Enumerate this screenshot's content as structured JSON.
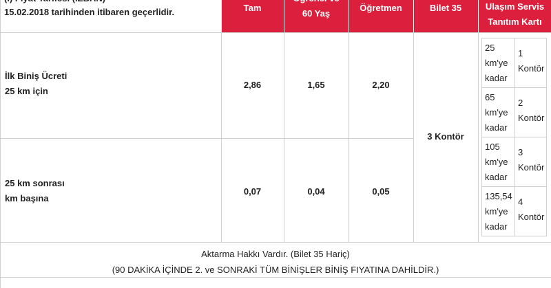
{
  "header": {
    "title_lines": [
      "(İ) Fiyat Tarifesi (İZBAN)",
      "15.02.2018 tarihinden itibaren geçerlidir."
    ],
    "columns": [
      [
        "Tam"
      ],
      [
        "Öğrenci ve",
        "60 Yaş"
      ],
      [
        "Öğretmen"
      ],
      [
        "Bilet 35"
      ],
      [
        "Ulaşım Servis",
        "Tanıtım Kartı"
      ]
    ]
  },
  "rows": [
    {
      "label": [
        "İlk Biniş Ücreti",
        "25 km için"
      ],
      "values": [
        "2,86",
        "1,65",
        "2,20"
      ]
    },
    {
      "label": [
        "25 km sonrası",
        "km başına"
      ],
      "values": [
        "0,07",
        "0,04",
        "0,05"
      ]
    }
  ],
  "bilet35": "3 Kontör",
  "ulasim": [
    {
      "distance": [
        "25",
        "km'ye",
        "kadar"
      ],
      "kontor": [
        "1",
        "Kontör"
      ]
    },
    {
      "distance": [
        "65",
        "km'ye",
        "kadar"
      ],
      "kontor": [
        "2",
        "Kontör"
      ]
    },
    {
      "distance": [
        "105",
        "km'ye",
        "kadar"
      ],
      "kontor": [
        "3",
        "Kontör"
      ]
    },
    {
      "distance": [
        "135,54",
        "km'ye",
        "kadar"
      ],
      "kontor": [
        "4",
        "Kontör"
      ]
    }
  ],
  "footer": [
    "Aktarma Hakkı Vardır. (Bilet 35 Hariç)",
    "(90 DAKİKA İÇİNDE 2. ve SONRAKİ TÜM BİNİŞLER BİNİŞ FIYATINA DAHİLDİR.)"
  ]
}
